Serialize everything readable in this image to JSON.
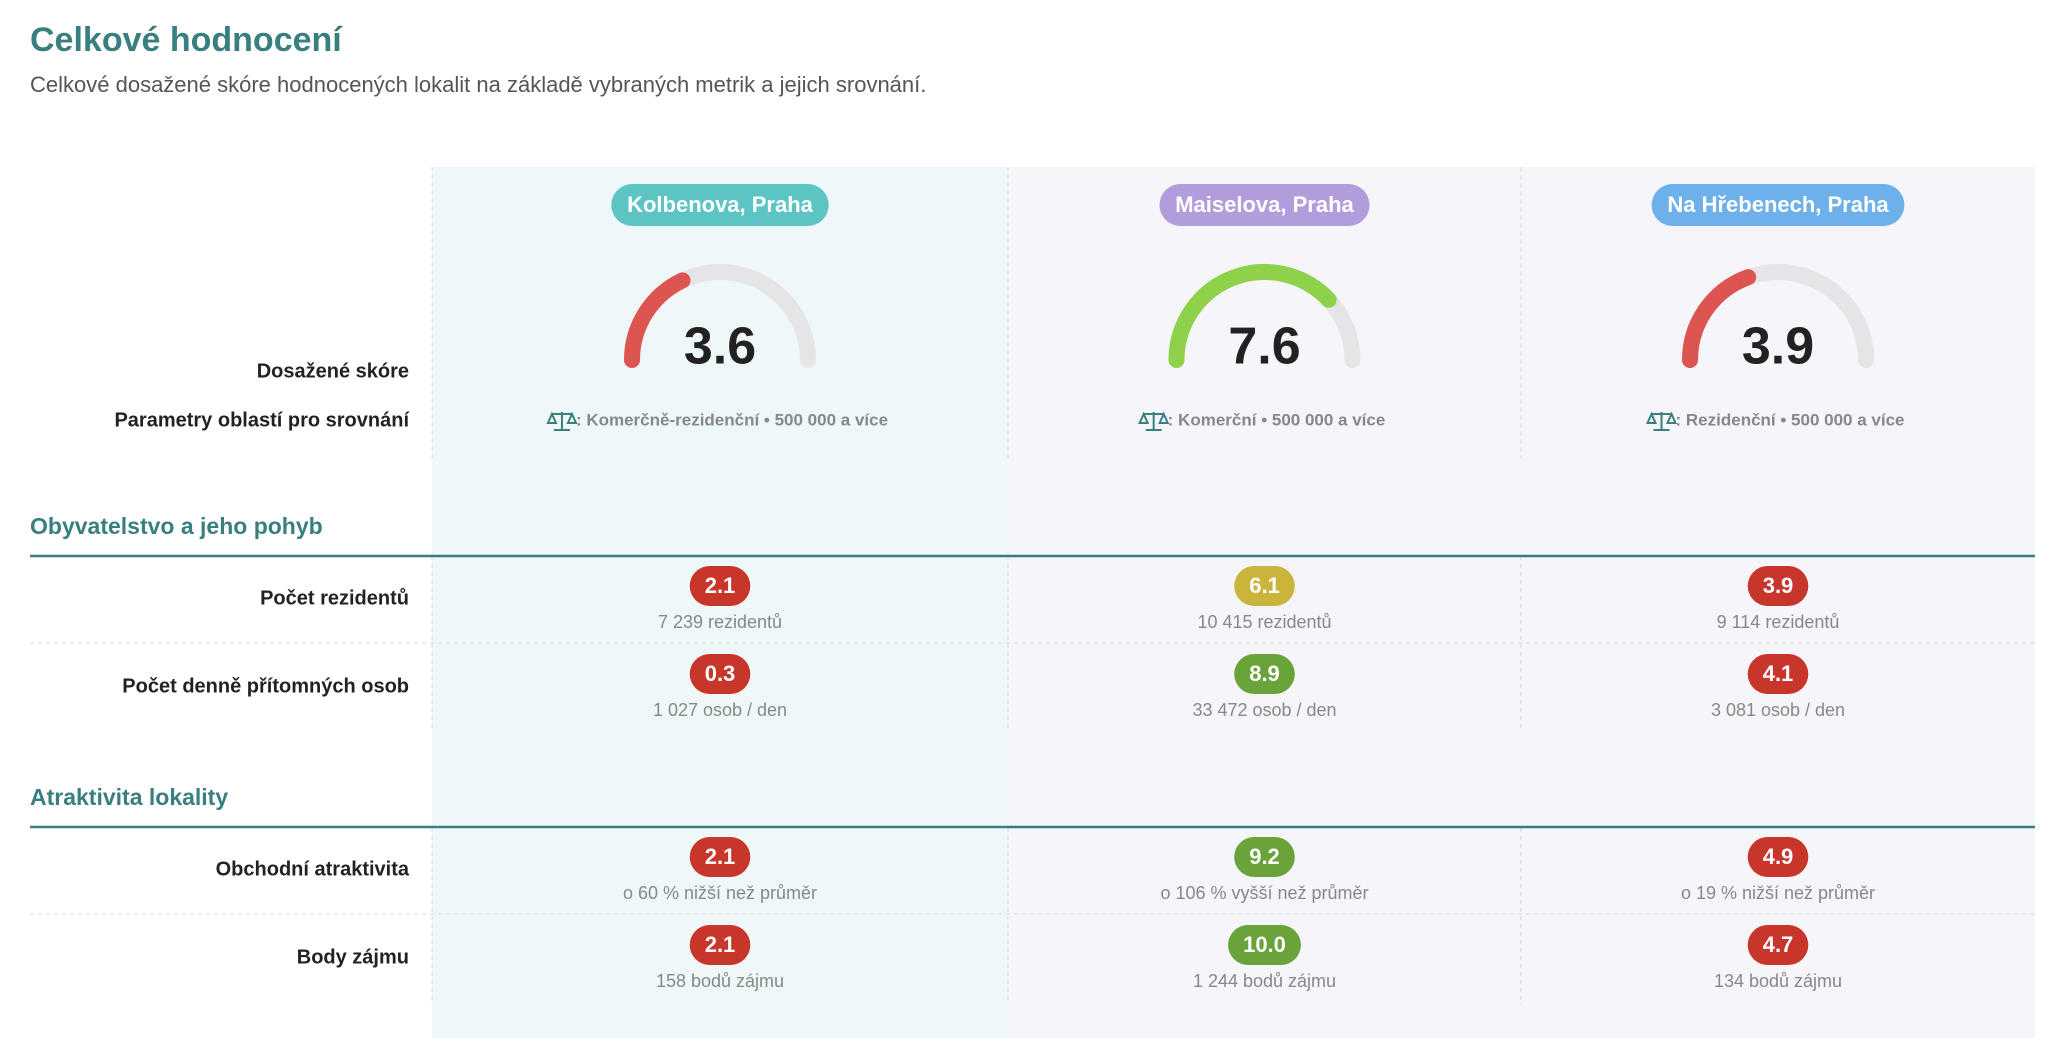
{
  "header": {
    "title": "Celkové hodnocení",
    "subtitle": "Celkové dosažené skóre hodnocených lokalit na základě vybraných metrik a jejich srovnání."
  },
  "row_labels": {
    "score": "Dosažené skóre",
    "params": "Parametry oblastí pro srovnání"
  },
  "gauge_lim": [
    0,
    10
  ],
  "locations": [
    {
      "name": "Kolbenova, Praha",
      "color": "#5cc5c4",
      "score": 3.6,
      "score_color": "#dc5550",
      "params": ": Komerčně-rezidenční • 500 000 a více"
    },
    {
      "name": "Maiselova, Praha",
      "color": "#b19ddc",
      "score": 7.6,
      "score_color": "#8ed14b",
      "params": ": Komerční • 500 000 a více"
    },
    {
      "name": "Na Hřebenech, Praha",
      "color": "#6eb1ea",
      "score": 3.9,
      "score_color": "#dc5550",
      "params": ": Rezidenční • 500 000 a více"
    }
  ],
  "sections": [
    {
      "title": "Obyvatelstvo a jeho pohyb",
      "rows": [
        {
          "label": "Počet rezidentů",
          "cells": [
            {
              "score": "2.1",
              "color": "#c8352b",
              "note": "7 239 rezidentů"
            },
            {
              "score": "6.1",
              "color": "#cbb43b",
              "note": "10 415 rezidentů"
            },
            {
              "score": "3.9",
              "color": "#c8352b",
              "note": "9 114 rezidentů"
            }
          ]
        },
        {
          "label": "Počet denně přítomných osob",
          "cells": [
            {
              "score": "0.3",
              "color": "#c8352b",
              "note": "1 027 osob / den"
            },
            {
              "score": "8.9",
              "color": "#6aa33a",
              "note": "33 472 osob / den"
            },
            {
              "score": "4.1",
              "color": "#c8352b",
              "note": "3 081 osob / den"
            }
          ]
        }
      ]
    },
    {
      "title": "Atraktivita lokality",
      "rows": [
        {
          "label": "Obchodní atraktivita",
          "cells": [
            {
              "score": "2.1",
              "color": "#c8352b",
              "note": "o 60 % nižší než průměr"
            },
            {
              "score": "9.2",
              "color": "#6aa33a",
              "note": "o 106 % vyšší než průměr"
            },
            {
              "score": "4.9",
              "color": "#c8352b",
              "note": "o 19 % nižší než průměr"
            }
          ]
        },
        {
          "label": "Body zájmu",
          "cells": [
            {
              "score": "2.1",
              "color": "#c8352b",
              "note": "158 bodů zájmu"
            },
            {
              "score": "10.0",
              "color": "#6aa33a",
              "note": "1 244 bodů zájmu"
            },
            {
              "score": "4.7",
              "color": "#c8352b",
              "note": "134 bodů zájmu"
            }
          ]
        }
      ]
    }
  ]
}
